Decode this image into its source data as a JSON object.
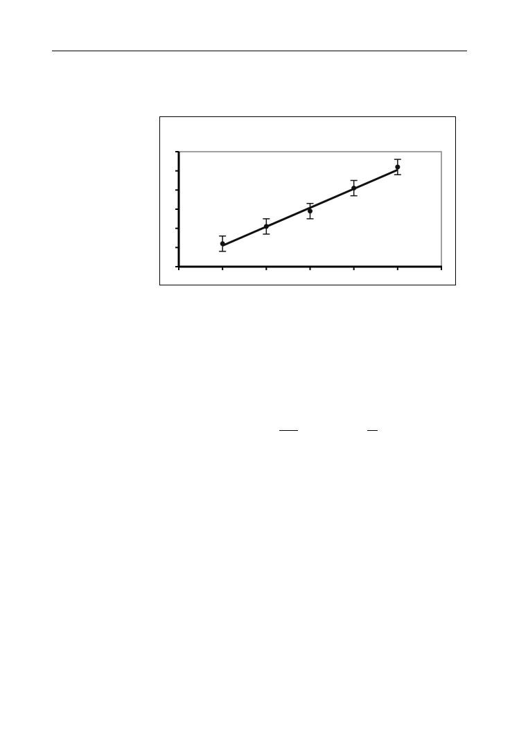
{
  "page": {
    "header_rule": true
  },
  "chart_data": {
    "type": "scatter",
    "title": "",
    "xlabel": "",
    "ylabel": "",
    "xlim": [
      0,
      6
    ],
    "ylim": [
      0,
      6
    ],
    "xticks": [
      0,
      1,
      2,
      3,
      4,
      5,
      6
    ],
    "yticks": [
      0,
      1,
      2,
      3,
      4,
      5,
      6
    ],
    "tick_labels_shown": false,
    "grid": false,
    "legend": "none",
    "points": {
      "x": [
        1,
        2,
        3,
        4,
        5
      ],
      "y": [
        1.2,
        2.1,
        2.9,
        4.1,
        5.2
      ],
      "error": [
        0.4,
        0.4,
        0.4,
        0.4,
        0.4
      ]
    },
    "fit_line": {
      "x": [
        1,
        5
      ],
      "y": [
        1.1,
        5.05
      ]
    },
    "colors": {
      "marks": "#111111",
      "plot_border": "#808080",
      "frame": "#000000"
    }
  }
}
